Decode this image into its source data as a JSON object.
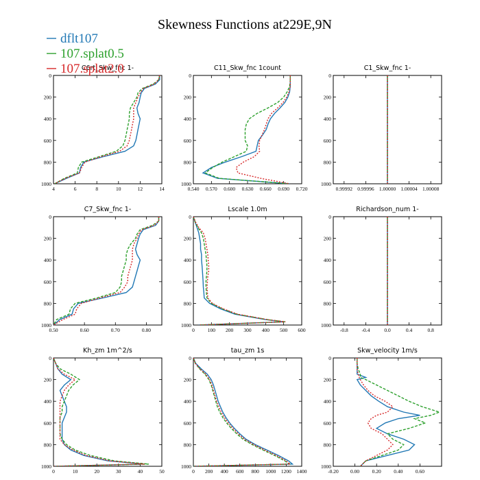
{
  "title": "Skewness Functions at229E,9N",
  "legend": [
    {
      "name": "dflt107",
      "color": "#1f77b4"
    },
    {
      "name": "107.splat0.5",
      "color": "#2ca02c"
    },
    {
      "name": "107.splat2.0",
      "color": "#d62728"
    }
  ],
  "chart_data": [
    {
      "type": "line",
      "title": "C6rt_Skw_fnc  1-",
      "xlim": [
        4,
        14
      ],
      "xticks": [
        "4",
        "6",
        "8",
        "10",
        "12",
        "14"
      ],
      "ylim": [
        0,
        1000
      ],
      "yticks": [
        "0",
        "200",
        "400",
        "600",
        "800",
        "1000"
      ],
      "y": [
        0,
        40,
        80,
        120,
        160,
        200,
        250,
        300,
        350,
        400,
        450,
        500,
        550,
        600,
        650,
        700,
        750,
        800,
        850,
        900,
        950,
        1000
      ],
      "series": [
        {
          "name": "dflt107",
          "values": [
            13.8,
            13.8,
            13.4,
            12.4,
            12.1,
            12.0,
            11.9,
            11.7,
            11.8,
            12.0,
            11.9,
            11.8,
            11.7,
            11.6,
            11.4,
            10.6,
            8.6,
            6.8,
            6.5,
            6.4,
            5.2,
            4.1
          ]
        },
        {
          "name": "107.splat0.5",
          "values": [
            13.8,
            13.7,
            13.2,
            12.2,
            11.8,
            11.7,
            11.4,
            11.1,
            11.0,
            11.0,
            10.9,
            10.8,
            10.7,
            10.6,
            10.4,
            9.8,
            8.2,
            6.6,
            6.3,
            6.2,
            5.0,
            4.1
          ]
        },
        {
          "name": "107.splat2.0",
          "values": [
            13.8,
            13.7,
            13.3,
            12.3,
            12.0,
            11.8,
            11.6,
            11.4,
            11.4,
            11.4,
            11.3,
            11.2,
            11.1,
            11.0,
            10.8,
            10.1,
            8.4,
            6.9,
            6.6,
            6.4,
            5.1,
            4.1
          ]
        }
      ]
    },
    {
      "type": "line",
      "title": "C11_Skw_fnc  1count",
      "xlim": [
        0.54,
        0.72
      ],
      "xticks": [
        "0.540",
        "0.570",
        "0.600",
        "0.630",
        "0.660",
        "0.690",
        "0.720"
      ],
      "ylim": [
        0,
        1000
      ],
      "yticks": [
        "0",
        "200",
        "400",
        "600",
        "800",
        "1000"
      ],
      "y": [
        0,
        50,
        100,
        150,
        200,
        250,
        300,
        350,
        400,
        450,
        500,
        550,
        600,
        650,
        700,
        750,
        800,
        850,
        900,
        950,
        1000
      ],
      "series": [
        {
          "name": "dflt107",
          "values": [
            0.701,
            0.701,
            0.701,
            0.7,
            0.697,
            0.692,
            0.684,
            0.675,
            0.668,
            0.664,
            0.661,
            0.655,
            0.648,
            0.646,
            0.644,
            0.62,
            0.593,
            0.57,
            0.556,
            0.58,
            0.7
          ]
        },
        {
          "name": "107.splat0.5",
          "values": [
            0.701,
            0.701,
            0.7,
            0.696,
            0.69,
            0.68,
            0.664,
            0.646,
            0.633,
            0.628,
            0.626,
            0.626,
            0.626,
            0.63,
            0.628,
            0.608,
            0.588,
            0.572,
            0.56,
            0.583,
            0.7
          ]
        },
        {
          "name": "107.splat2.0",
          "values": [
            0.701,
            0.701,
            0.701,
            0.699,
            0.695,
            0.689,
            0.68,
            0.67,
            0.664,
            0.661,
            0.658,
            0.654,
            0.65,
            0.649,
            0.65,
            0.641,
            0.623,
            0.611,
            0.614,
            0.652,
            0.7
          ]
        }
      ]
    },
    {
      "type": "line",
      "title": "C1_Skw_fnc  1-",
      "xlim": [
        0.9999,
        1.0001
      ],
      "xticks": [
        "0.99992",
        "0.99996",
        "1.00000",
        "1.00004",
        "1.00008"
      ],
      "ylim": [
        0,
        1000
      ],
      "yticks": [
        "0",
        "200",
        "400",
        "600",
        "800",
        "1000"
      ],
      "y": [
        0,
        1000
      ],
      "series": [
        {
          "name": "dflt107",
          "values": [
            1.0,
            1.0
          ]
        },
        {
          "name": "107.splat0.5",
          "values": [
            1.0,
            1.0
          ]
        },
        {
          "name": "107.splat2.0",
          "values": [
            1.0,
            1.0
          ]
        }
      ]
    },
    {
      "type": "line",
      "title": "C7_Skw_fnc  1-",
      "xlim": [
        0.5,
        0.85
      ],
      "xticks": [
        "0.50",
        "0.60",
        "0.70",
        "0.80"
      ],
      "ylim": [
        0,
        1000
      ],
      "yticks": [
        "0",
        "200",
        "400",
        "600",
        "800",
        "1000"
      ],
      "y": [
        0,
        40,
        80,
        120,
        160,
        200,
        250,
        300,
        350,
        400,
        450,
        500,
        550,
        600,
        650,
        700,
        750,
        800,
        850,
        900,
        950,
        1000
      ],
      "series": [
        {
          "name": "dflt107",
          "values": [
            0.84,
            0.84,
            0.83,
            0.79,
            0.78,
            0.775,
            0.77,
            0.765,
            0.77,
            0.78,
            0.775,
            0.77,
            0.765,
            0.76,
            0.755,
            0.735,
            0.66,
            0.58,
            0.565,
            0.56,
            0.52,
            0.5
          ]
        },
        {
          "name": "107.splat0.5",
          "values": [
            0.84,
            0.84,
            0.82,
            0.78,
            0.77,
            0.765,
            0.75,
            0.74,
            0.735,
            0.735,
            0.73,
            0.725,
            0.72,
            0.72,
            0.715,
            0.7,
            0.64,
            0.57,
            0.555,
            0.55,
            0.51,
            0.5
          ]
        },
        {
          "name": "107.splat2.0",
          "values": [
            0.84,
            0.84,
            0.825,
            0.785,
            0.775,
            0.77,
            0.76,
            0.755,
            0.755,
            0.755,
            0.75,
            0.745,
            0.74,
            0.74,
            0.73,
            0.715,
            0.65,
            0.59,
            0.575,
            0.57,
            0.53,
            0.5
          ]
        }
      ]
    },
    {
      "type": "line",
      "title": "Lscale  1.0m",
      "xlim": [
        0,
        600
      ],
      "xticks": [
        "0",
        "100",
        "200",
        "300",
        "400",
        "500",
        "600"
      ],
      "ylim": [
        0,
        1000
      ],
      "yticks": [
        "0",
        "200",
        "400",
        "600",
        "800",
        "1000"
      ],
      "y": [
        0,
        50,
        100,
        150,
        200,
        250,
        300,
        350,
        400,
        450,
        500,
        550,
        600,
        650,
        700,
        750,
        800,
        850,
        900,
        950,
        970,
        1000
      ],
      "series": [
        {
          "name": "dflt107",
          "values": [
            0,
            10,
            20,
            30,
            35,
            40,
            40,
            45,
            45,
            48,
            50,
            52,
            54,
            55,
            58,
            60,
            90,
            150,
            230,
            400,
            500,
            30
          ]
        },
        {
          "name": "107.splat0.5",
          "values": [
            0,
            10,
            25,
            45,
            55,
            60,
            65,
            70,
            72,
            75,
            75,
            72,
            70,
            70,
            72,
            75,
            100,
            160,
            240,
            410,
            510,
            30
          ]
        },
        {
          "name": "107.splat2.0",
          "values": [
            0,
            12,
            30,
            55,
            65,
            70,
            75,
            80,
            82,
            85,
            85,
            80,
            78,
            76,
            78,
            80,
            105,
            165,
            245,
            410,
            510,
            30
          ]
        }
      ]
    },
    {
      "type": "line",
      "title": "Richardson_num  1-",
      "xlim": [
        -1,
        1
      ],
      "xticks": [
        "-0.8",
        "-0.4",
        "0.0",
        "0.4",
        "0.8"
      ],
      "ylim": [
        0,
        1000
      ],
      "yticks": [
        "0",
        "200",
        "400",
        "600",
        "800",
        "1000"
      ],
      "y": [
        0,
        1000
      ],
      "series": [
        {
          "name": "dflt107",
          "values": [
            0,
            0
          ]
        },
        {
          "name": "107.splat0.5",
          "values": [
            0,
            0
          ]
        },
        {
          "name": "107.splat2.0",
          "values": [
            0,
            0
          ]
        }
      ]
    },
    {
      "type": "line",
      "title": "Kh_zm  1m^2/s",
      "xlim": [
        0,
        50
      ],
      "xticks": [
        "0",
        "10",
        "20",
        "30",
        "40",
        "50"
      ],
      "ylim": [
        0,
        1000
      ],
      "yticks": [
        "0",
        "200",
        "400",
        "600",
        "800",
        "1000"
      ],
      "y": [
        0,
        50,
        100,
        150,
        200,
        250,
        300,
        350,
        400,
        450,
        500,
        550,
        600,
        650,
        700,
        750,
        800,
        850,
        900,
        950,
        980,
        1000
      ],
      "series": [
        {
          "name": "dflt107",
          "values": [
            0,
            1,
            2,
            4,
            8,
            5,
            3,
            4,
            5,
            6,
            6,
            5,
            4,
            4,
            4,
            4,
            5,
            8,
            14,
            25,
            42,
            0
          ]
        },
        {
          "name": "107.splat0.5",
          "values": [
            0,
            1,
            3,
            8,
            12,
            9,
            7,
            6,
            5,
            4,
            4,
            3,
            3,
            3,
            3,
            4,
            6,
            10,
            17,
            28,
            44,
            0
          ]
        },
        {
          "name": "107.splat2.0",
          "values": [
            0,
            1,
            2,
            5,
            10,
            7,
            5,
            4,
            3,
            3,
            3,
            3,
            3,
            3,
            3,
            3,
            5,
            9,
            15,
            26,
            42,
            0
          ]
        }
      ]
    },
    {
      "type": "line",
      "title": "tau_zm  1s",
      "xlim": [
        0,
        1400
      ],
      "xticks": [
        "0",
        "200",
        "400",
        "600",
        "800",
        "1000",
        "1200",
        "1400"
      ],
      "ylim": [
        0,
        1000
      ],
      "yticks": [
        "0",
        "200",
        "400",
        "600",
        "800",
        "1000"
      ],
      "y": [
        0,
        50,
        100,
        150,
        200,
        250,
        300,
        350,
        400,
        450,
        500,
        550,
        600,
        650,
        700,
        750,
        800,
        850,
        900,
        950,
        980,
        1000
      ],
      "series": [
        {
          "name": "dflt107",
          "values": [
            0,
            30,
            100,
            180,
            230,
            260,
            280,
            300,
            320,
            350,
            380,
            420,
            470,
            530,
            600,
            680,
            800,
            950,
            1100,
            1230,
            1280,
            0
          ]
        },
        {
          "name": "107.splat0.5",
          "values": [
            0,
            25,
            80,
            150,
            200,
            230,
            250,
            270,
            290,
            310,
            340,
            380,
            430,
            490,
            560,
            640,
            760,
            900,
            1050,
            1180,
            1240,
            0
          ]
        },
        {
          "name": "107.splat2.0",
          "values": [
            0,
            25,
            85,
            160,
            210,
            240,
            260,
            280,
            300,
            330,
            360,
            400,
            450,
            510,
            580,
            660,
            780,
            920,
            1070,
            1200,
            1250,
            0
          ]
        }
      ]
    },
    {
      "type": "line",
      "title": "Skw_velocity  1m/s",
      "xlim": [
        -0.2,
        0.8
      ],
      "xticks": [
        "-0.20",
        "0.00",
        "0.20",
        "0.40",
        "0.60"
      ],
      "ylim": [
        0,
        1000
      ],
      "yticks": [
        "0",
        "200",
        "400",
        "600",
        "800",
        "1000"
      ],
      "y": [
        0,
        50,
        100,
        150,
        180,
        200,
        250,
        300,
        350,
        400,
        450,
        500,
        530,
        560,
        600,
        650,
        700,
        750,
        800,
        850,
        900,
        950,
        1000
      ],
      "series": [
        {
          "name": "dflt107",
          "values": [
            0.02,
            0.02,
            0.02,
            0.02,
            0.1,
            0.02,
            0.05,
            0.1,
            0.15,
            0.22,
            0.3,
            0.45,
            0.6,
            0.4,
            0.28,
            0.2,
            0.3,
            0.45,
            0.55,
            0.5,
            0.3,
            0.1,
            0.05
          ]
        },
        {
          "name": "107.splat0.5",
          "values": [
            0.02,
            0.02,
            0.03,
            0.05,
            0.05,
            0.1,
            0.2,
            0.3,
            0.4,
            0.5,
            0.62,
            0.78,
            0.7,
            0.55,
            0.65,
            0.5,
            0.3,
            0.35,
            0.45,
            0.4,
            0.25,
            0.1,
            0.05
          ]
        },
        {
          "name": "107.splat2.0",
          "values": [
            0.02,
            0.02,
            0.02,
            0.03,
            0.04,
            0.05,
            0.08,
            0.12,
            0.18,
            0.28,
            0.35,
            0.3,
            0.2,
            0.15,
            0.12,
            0.15,
            0.25,
            0.3,
            0.35,
            0.3,
            0.2,
            0.1,
            0.05
          ]
        }
      ]
    }
  ]
}
